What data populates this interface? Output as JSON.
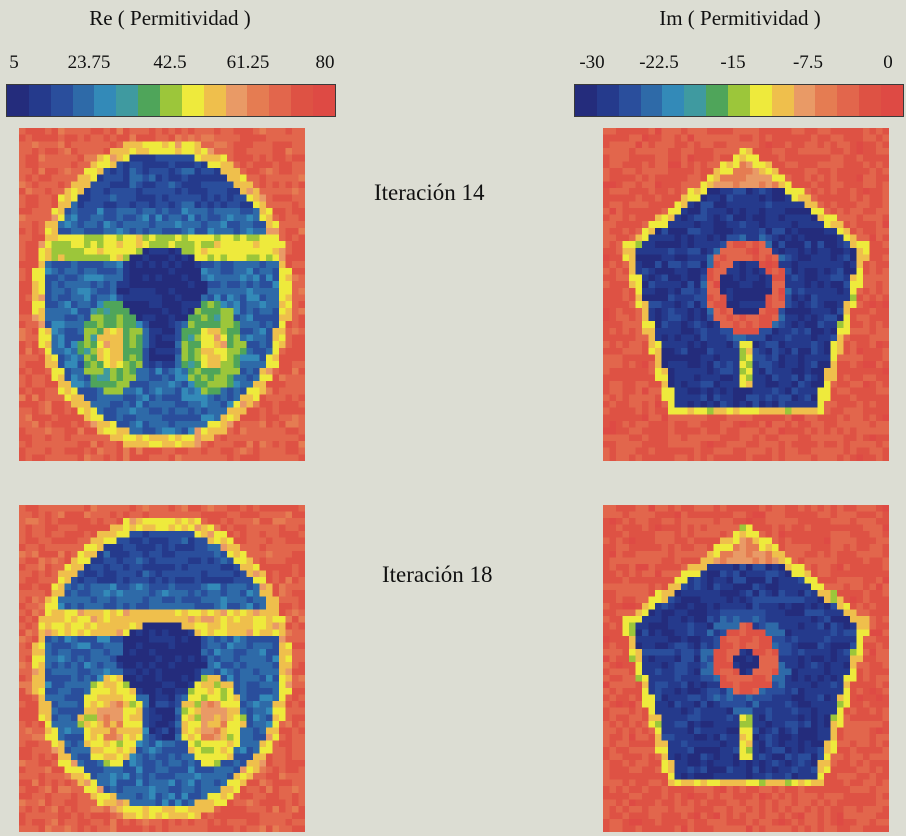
{
  "chart_data": [
    {
      "type": "heatmap",
      "title": "Re ( Permitividad )",
      "colorbar": {
        "ticks": [
          "5",
          "23.75",
          "42.5",
          "61.25",
          "80"
        ],
        "range": [
          5,
          80
        ],
        "colors": [
          "#242c7c",
          "#253a8c",
          "#2a4e9c",
          "#2e6aa8",
          "#338ab8",
          "#3f9aa0",
          "#4fa55a",
          "#9cc63a",
          "#eeea3c",
          "#efbf4c",
          "#e99a66",
          "#e57c52",
          "#e2664c",
          "#de5244",
          "#de4a44"
        ]
      },
      "rows": [
        {
          "label": "Iteración 14",
          "pattern": "re14"
        },
        {
          "label": "Iteración 18",
          "pattern": "re18"
        }
      ]
    },
    {
      "type": "heatmap",
      "title": "Im ( Permitividad )",
      "colorbar": {
        "ticks": [
          "-30",
          "-22.5",
          "-15",
          "-7.5",
          "0"
        ],
        "range": [
          -30,
          0
        ],
        "colors": [
          "#242c7c",
          "#253a8c",
          "#2a4e9c",
          "#2e6aa8",
          "#338ab8",
          "#3f9aa0",
          "#4fa55a",
          "#9cc63a",
          "#eeea3c",
          "#efbf4c",
          "#e99a66",
          "#e57c52",
          "#e2664c",
          "#de5244",
          "#de4a44"
        ]
      },
      "rows": [
        {
          "label": "Iteración 14",
          "pattern": "im14"
        },
        {
          "label": "Iteración 18",
          "pattern": "im18"
        }
      ]
    }
  ],
  "row_labels": [
    "Iteración 14",
    "Iteración 18"
  ]
}
